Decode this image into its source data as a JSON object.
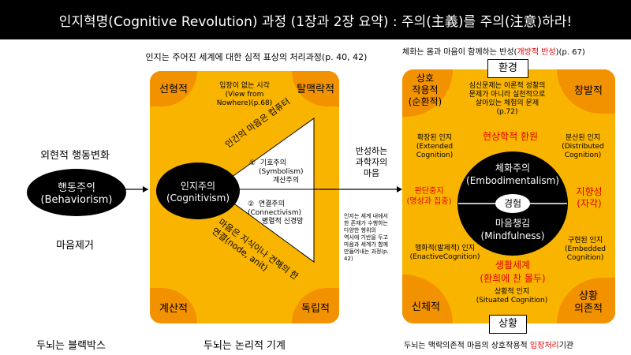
{
  "title": "인지혁명(Cognitive Revolution) 과정 (1장과 2장 요약) : 주의(主義)를 주의(注意)하라!",
  "left": {
    "top_label": "외현적 행동변화",
    "circle_line1": "행동주의",
    "circle_line2": "(Behaviorism)",
    "bottom_label": "마음제거",
    "footer": "두뇌는 블랙박스"
  },
  "middle": {
    "header": "인지는 주어진 세계에 대한 심적 표상의 처리과정(p. 40, 42)",
    "corner_tl": "선형적",
    "corner_tr": "탈맥락적",
    "corner_bl": "계산적",
    "corner_br": "독립적",
    "quote_line1": "입장이 없는 시각",
    "quote_line2": "(View from",
    "quote_line3": "Nowhere)(p.68)",
    "circle_line1": "인지주의",
    "circle_line2": "(Cognitivism)",
    "diag_top": "인간의 마음은 컴퓨터",
    "item1_num": "①",
    "item1_a": "기호주의",
    "item1_b": "(Symbolism)",
    "item1_c": "계산주의",
    "item2_num": "②",
    "item2_a": "연결주의",
    "item2_b": "(Connectivism)",
    "item2_c": "병렬적 신경망",
    "diag_bottom_1": "마음은 지식이나 견해의 한",
    "diag_bottom_2": "연결(node, anit)",
    "footer": "두뇌는 논리적 기계"
  },
  "bridge": {
    "label_line1": "반성하는",
    "label_line2": "과학자의",
    "label_line3": "마음",
    "note_lines": [
      "인지는 세계 내에서",
      "한 존재가 수행하는",
      "다양한 행위의",
      "역사에 기반을 두고",
      "마음과 세계가 함께",
      "만들어내는 과정(p.",
      "42)"
    ]
  },
  "right": {
    "header_main": "체화는 몸과 마음이 함께하는 반성(",
    "header_red": "개방적 반성",
    "header_end": ")(p. 67)",
    "env_tab": "환경",
    "situation_tab": "상황",
    "corner_tl_1": "상호",
    "corner_tl_2": "작용적",
    "corner_tl_3": "(순환적)",
    "corner_tr": "창발적",
    "corner_bl": "신체적",
    "corner_br_1": "상황",
    "corner_br_2": "의존적",
    "top_note_1": "심신문제는 이론적 성찰의",
    "top_note_2": "문제가 아니라 실천적으로",
    "top_note_3": "살아있는 체험의 문제",
    "top_note_4": "(p.72)",
    "phenom": "현상학적 환원",
    "extended_1": "확장된 인지",
    "extended_2": "(Extended",
    "extended_3": "Cognition)",
    "distributed_1": "분산된 인지",
    "distributed_2": "(Distributed",
    "distributed_3": "Cognition)",
    "suspend_1": "판단중지",
    "suspend_2": "(명상과 집중)",
    "intent_1": "지향성",
    "intent_2": "(자각)",
    "embodi_1": "체화주의",
    "embodi_2": "(Embodimentalism)",
    "experience": "경험",
    "mindful_1": "마음챙김",
    "mindful_2": "(Mindfulness)",
    "enactive": "행화적(발제적) 인지",
    "enactive_2": "(EnactiveCognition)",
    "embedded_1": "구현된 인지",
    "embedded_2": "(Embedded",
    "embedded_3": "Cognition)",
    "lifeworld_1": "생활세계",
    "lifeworld_2": "(환희에 찬 몰두)",
    "situated_1": "상황적 인지",
    "situated_2": "(Situated Cognition)",
    "footer_main": "두뇌는 맥락의존적 마음의 상호작용적 ",
    "footer_red": "입장처리",
    "footer_end": "기관"
  },
  "colors": {
    "panel": "#f9b400",
    "corner": "#f39200",
    "accent": "#e00000",
    "black": "#000000"
  }
}
